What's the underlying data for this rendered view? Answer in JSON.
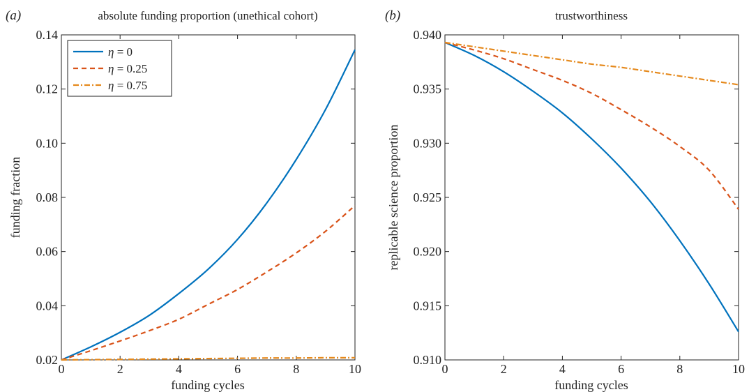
{
  "chart_data": [
    {
      "type": "line",
      "panel_label": "(a)",
      "title": "absolute funding proportion (unethical cohort)",
      "xlabel": "funding cycles",
      "ylabel": "funding fraction",
      "xlim": [
        0,
        10
      ],
      "ylim": [
        0.02,
        0.14
      ],
      "xticks": [
        0,
        2,
        4,
        6,
        8,
        10
      ],
      "xtick_labels": [
        "0",
        "2",
        "4",
        "6",
        "8",
        "10"
      ],
      "yticks": [
        0.02,
        0.04,
        0.06,
        0.08,
        0.1,
        0.12,
        0.14
      ],
      "ytick_labels": [
        "0.02",
        "0.04",
        "0.06",
        "0.08",
        "0.10",
        "0.12",
        "0.14"
      ],
      "grid": false,
      "legend_position": "top-left",
      "x": [
        0,
        1,
        2,
        3,
        4,
        5,
        6,
        7,
        8,
        9,
        10
      ],
      "series": [
        {
          "name": "η = 0",
          "symbol": "η",
          "value_text": "= 0",
          "color": "#0072bd",
          "style": "solid",
          "values": [
            0.02,
            0.0248,
            0.0302,
            0.0365,
            0.0445,
            0.0535,
            0.0645,
            0.078,
            0.094,
            0.1125,
            0.1345
          ]
        },
        {
          "name": "η = 0.25",
          "symbol": "η",
          "value_text": "= 0.25",
          "color": "#d95319",
          "style": "dashed",
          "values": [
            0.02,
            0.0234,
            0.027,
            0.0308,
            0.035,
            0.0405,
            0.046,
            0.0525,
            0.0595,
            0.0675,
            0.077
          ]
        },
        {
          "name": "η = 0.75",
          "symbol": "η",
          "value_text": "= 0.75",
          "color": "#e5891c",
          "style": "dashdot",
          "values": [
            0.02,
            0.0201,
            0.0202,
            0.0203,
            0.0204,
            0.0205,
            0.0206,
            0.0207,
            0.0207,
            0.0208,
            0.0208
          ]
        }
      ]
    },
    {
      "type": "line",
      "panel_label": "(b)",
      "title": "trustworthiness",
      "xlabel": "funding cycles",
      "ylabel": "replicable science proportion",
      "xlim": [
        0,
        10
      ],
      "ylim": [
        0.91,
        0.94
      ],
      "xticks": [
        0,
        2,
        4,
        6,
        8,
        10
      ],
      "xtick_labels": [
        "0",
        "2",
        "4",
        "6",
        "8",
        "10"
      ],
      "yticks": [
        0.91,
        0.915,
        0.92,
        0.925,
        0.93,
        0.935,
        0.94
      ],
      "ytick_labels": [
        "0.910",
        "0.915",
        "0.920",
        "0.925",
        "0.930",
        "0.935",
        "0.940"
      ],
      "grid": false,
      "legend_position": "none",
      "x": [
        0,
        1,
        2,
        3,
        4,
        5,
        6,
        7,
        8,
        9,
        10
      ],
      "series": [
        {
          "color": "#0072bd",
          "style": "solid",
          "values": [
            0.9393,
            0.9381,
            0.9366,
            0.9348,
            0.9328,
            0.9304,
            0.9277,
            0.9246,
            0.921,
            0.917,
            0.9126
          ]
        },
        {
          "color": "#d95319",
          "style": "dashed",
          "values": [
            0.9393,
            0.9386,
            0.9378,
            0.9368,
            0.9358,
            0.9346,
            0.9331,
            0.9315,
            0.9297,
            0.9275,
            0.9239
          ]
        },
        {
          "color": "#e5891c",
          "style": "dashdot",
          "values": [
            0.9393,
            0.9389,
            0.9385,
            0.9381,
            0.9377,
            0.9373,
            0.937,
            0.9366,
            0.9362,
            0.9358,
            0.9354
          ]
        }
      ]
    }
  ]
}
